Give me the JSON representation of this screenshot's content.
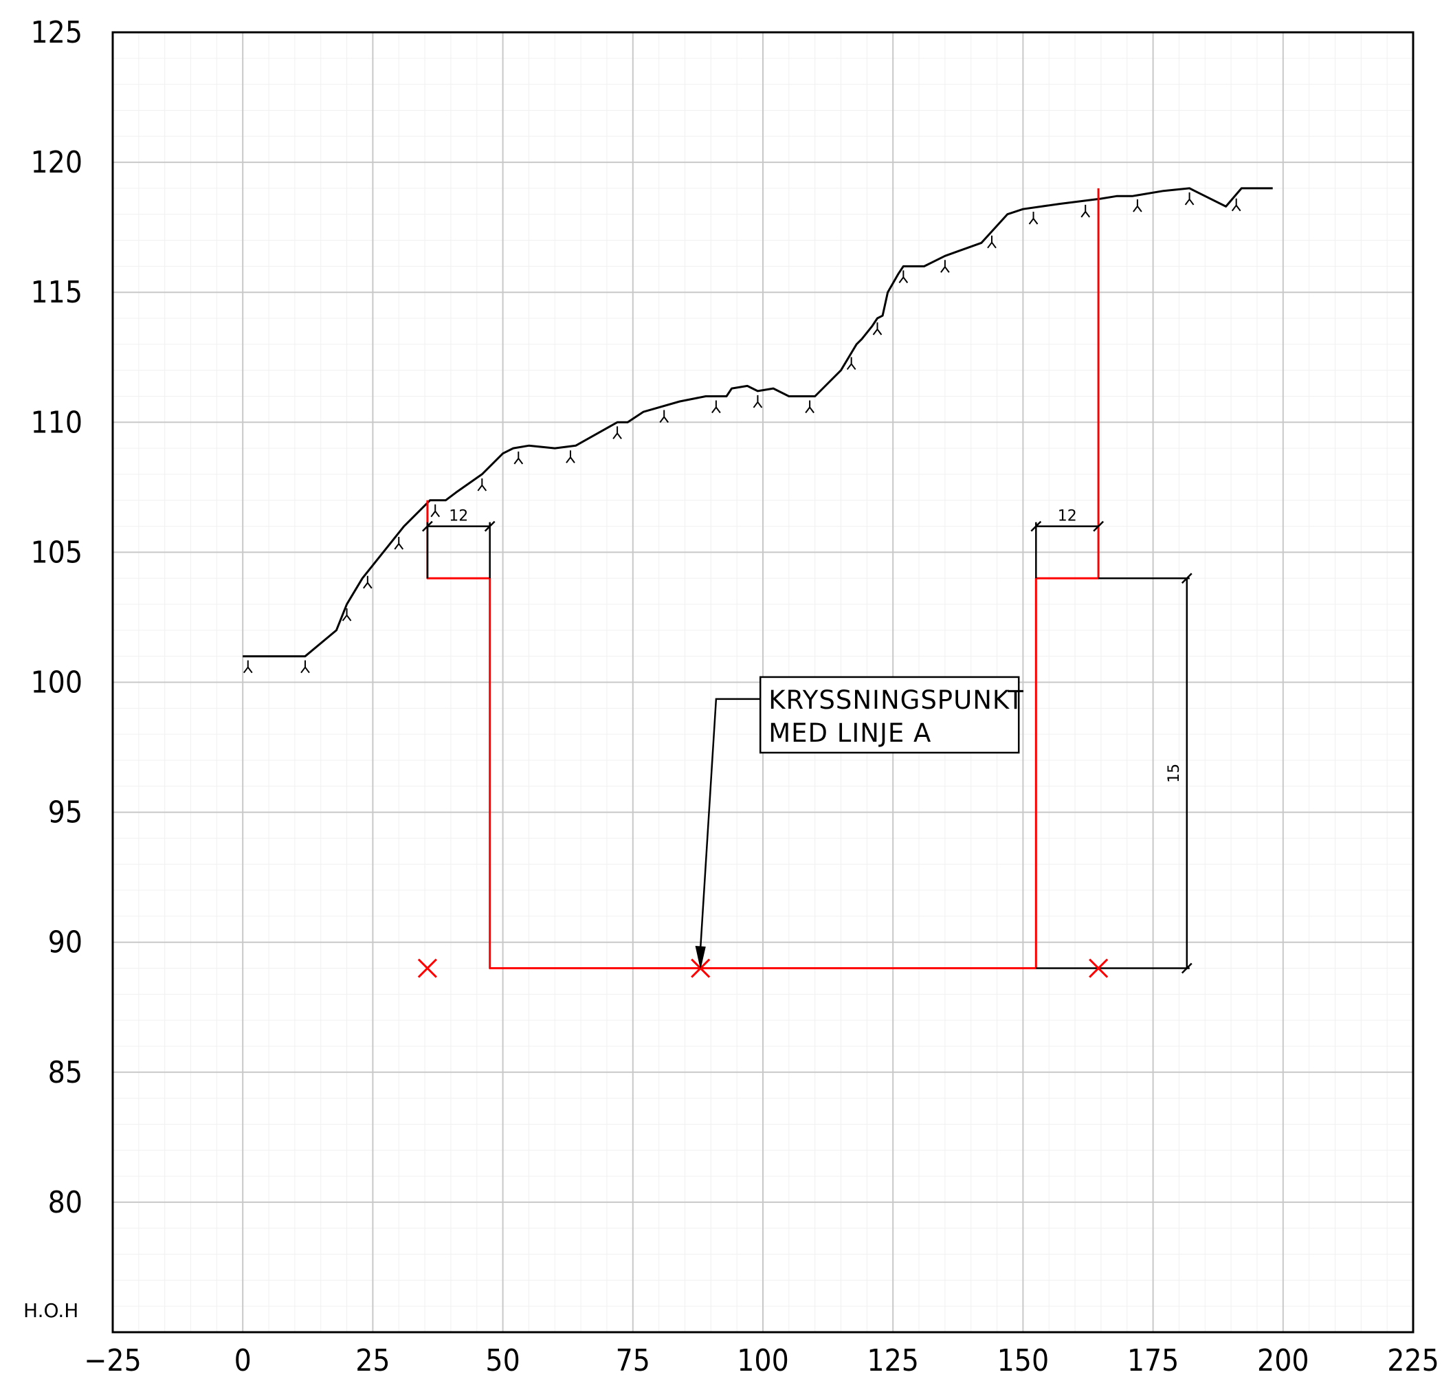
{
  "chart_data": {
    "type": "line",
    "title": "",
    "xlabel": "",
    "ylabel": "H.O.H",
    "xlim": [
      -25,
      225
    ],
    "ylim": [
      75,
      125
    ],
    "x_ticks": [
      -25,
      0,
      25,
      50,
      75,
      100,
      125,
      150,
      175,
      200,
      225
    ],
    "y_ticks": [
      80,
      85,
      90,
      95,
      100,
      105,
      110,
      115,
      120,
      125
    ],
    "grid": true,
    "series": [
      {
        "name": "",
        "color": "#000000",
        "points": [
          [
            0,
            101
          ],
          [
            12,
            101
          ],
          [
            18,
            102
          ],
          [
            20,
            103
          ],
          [
            23,
            104
          ],
          [
            27,
            105
          ],
          [
            31,
            106
          ],
          [
            36,
            107
          ],
          [
            39,
            107
          ],
          [
            41,
            107.3
          ],
          [
            46,
            108
          ],
          [
            50,
            108.8
          ],
          [
            52,
            109
          ],
          [
            55,
            109.1
          ],
          [
            60,
            109
          ],
          [
            64,
            109.1
          ],
          [
            72,
            110
          ],
          [
            74,
            110
          ],
          [
            77,
            110.4
          ],
          [
            84,
            110.8
          ],
          [
            89,
            111
          ],
          [
            93,
            111
          ],
          [
            94,
            111.3
          ],
          [
            97,
            111.4
          ],
          [
            99,
            111.2
          ],
          [
            102,
            111.3
          ],
          [
            105,
            111
          ],
          [
            110,
            111
          ],
          [
            115,
            112
          ],
          [
            118,
            113
          ],
          [
            119,
            113.2
          ],
          [
            121,
            113.7
          ],
          [
            122,
            114
          ],
          [
            123,
            114.1
          ],
          [
            124,
            115
          ],
          [
            126,
            115.7
          ],
          [
            127,
            116
          ],
          [
            131,
            116
          ],
          [
            135,
            116.4
          ],
          [
            142,
            116.9
          ],
          [
            147,
            118
          ],
          [
            150,
            118.2
          ],
          [
            157,
            118.4
          ],
          [
            165,
            118.6
          ],
          [
            168,
            118.7
          ],
          [
            171,
            118.7
          ],
          [
            177,
            118.9
          ],
          [
            182,
            119
          ],
          [
            183,
            118.9
          ],
          [
            189,
            118.3
          ],
          [
            192,
            119
          ],
          [
            198,
            119
          ]
        ]
      },
      {
        "name": "",
        "color": "#ff0000",
        "points": [
          [
            35.5,
            107
          ],
          [
            35.5,
            104
          ],
          [
            47.5,
            104
          ],
          [
            47.5,
            89
          ],
          [
            152.5,
            89
          ],
          [
            152.5,
            104
          ],
          [
            164.5,
            104
          ],
          [
            164.5,
            119
          ]
        ]
      }
    ],
    "cross_markers": [
      [
        35.5,
        89
      ],
      [
        88,
        89
      ],
      [
        164.5,
        89
      ]
    ],
    "slope_ticks_x": [
      1,
      12,
      20,
      24,
      30,
      37,
      46,
      53,
      63,
      72,
      81,
      91,
      99,
      109,
      117,
      122,
      127,
      135,
      144,
      152,
      162,
      172,
      182,
      191
    ],
    "dimensions": {
      "left_width_label": "12",
      "right_width_label": "12",
      "depth_label": "15"
    },
    "annotation": {
      "lines": [
        "KRYSSNINGSPUNKT",
        "MED LINJE A"
      ],
      "arrow_to": [
        88,
        89
      ]
    }
  }
}
